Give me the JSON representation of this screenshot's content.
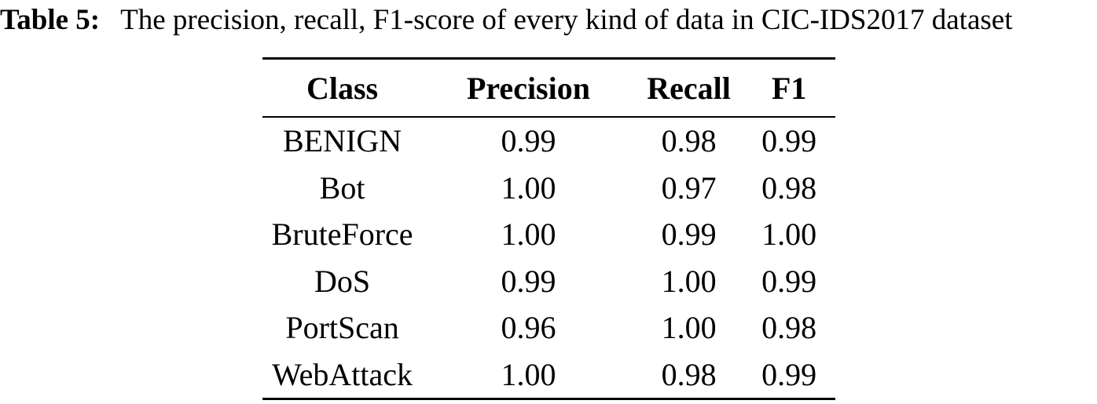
{
  "caption": {
    "label": "Table 5:",
    "text": "The precision, recall, F1-score of every kind of data in CIC-IDS2017 dataset"
  },
  "table": {
    "columns": [
      "Class",
      "Precision",
      "Recall",
      "F1"
    ],
    "rows": [
      {
        "class": "BENIGN",
        "precision": "0.99",
        "recall": "0.98",
        "f1": "0.99"
      },
      {
        "class": "Bot",
        "precision": "1.00",
        "recall": "0.97",
        "f1": "0.98"
      },
      {
        "class": "BruteForce",
        "precision": "1.00",
        "recall": "0.99",
        "f1": "1.00"
      },
      {
        "class": "DoS",
        "precision": "0.99",
        "recall": "1.00",
        "f1": "0.99"
      },
      {
        "class": "PortScan",
        "precision": "0.96",
        "recall": "1.00",
        "f1": "0.98"
      },
      {
        "class": "WebAttack",
        "precision": "1.00",
        "recall": "0.98",
        "f1": "0.99"
      }
    ],
    "text_color": "#000000",
    "background_color": "#ffffff"
  }
}
